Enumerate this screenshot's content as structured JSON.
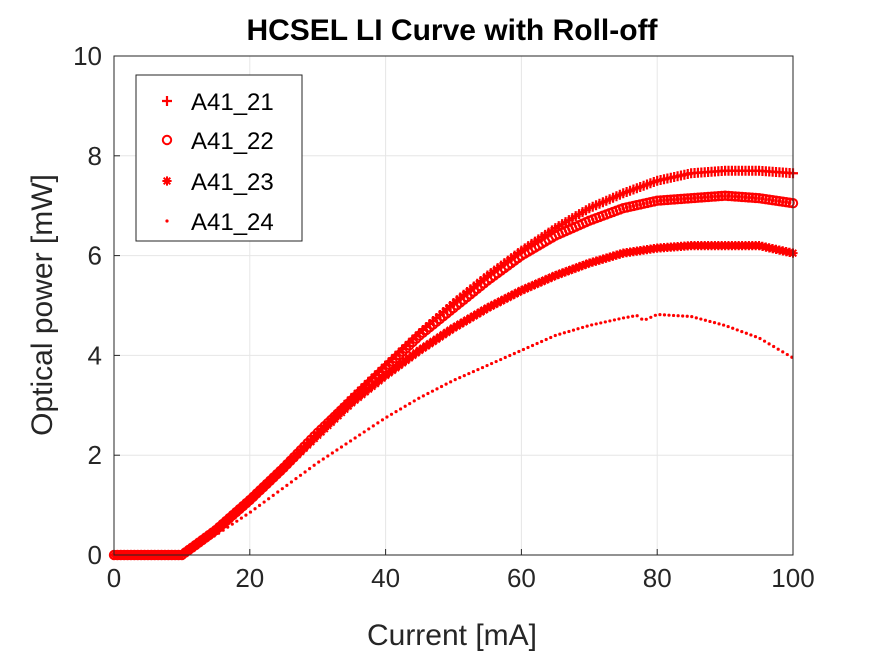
{
  "chart_data": {
    "type": "scatter",
    "title": "HCSEL LI Curve with Roll-off",
    "xlabel": "Current [mA]",
    "ylabel": "Optical power [mW]",
    "xlim": [
      0,
      100
    ],
    "ylim": [
      0,
      10
    ],
    "xticks": [
      "0",
      "20",
      "40",
      "60",
      "80",
      "100"
    ],
    "yticks": [
      "0",
      "2",
      "4",
      "6",
      "8",
      "10"
    ],
    "grid": true,
    "legend_position": "top-left",
    "colors": {
      "series": "#ff0000",
      "axis": "#262626",
      "grid": "#e6e6e6"
    },
    "series": [
      {
        "name": "A41_21",
        "marker": "plus",
        "x": [
          0,
          5,
          9.5,
          10,
          15,
          20,
          25,
          30,
          35,
          40,
          45,
          50,
          55,
          60,
          65,
          70,
          75,
          80,
          85,
          90,
          95,
          100
        ],
        "y": [
          0,
          0,
          0,
          0,
          0.5,
          1.1,
          1.75,
          2.45,
          3.15,
          3.8,
          4.45,
          5.05,
          5.6,
          6.1,
          6.55,
          6.95,
          7.25,
          7.5,
          7.65,
          7.7,
          7.7,
          7.65
        ]
      },
      {
        "name": "A41_22",
        "marker": "circle",
        "x": [
          0,
          5,
          9.5,
          10,
          15,
          20,
          25,
          30,
          35,
          40,
          45,
          50,
          55,
          60,
          65,
          70,
          75,
          80,
          85,
          90,
          95,
          100
        ],
        "y": [
          0,
          0,
          0,
          0,
          0.5,
          1.1,
          1.75,
          2.45,
          3.1,
          3.75,
          4.4,
          4.95,
          5.5,
          6.0,
          6.4,
          6.7,
          6.95,
          7.1,
          7.15,
          7.2,
          7.15,
          7.05
        ]
      },
      {
        "name": "A41_23",
        "marker": "star",
        "x": [
          0,
          5,
          9.5,
          10,
          15,
          20,
          25,
          30,
          35,
          40,
          45,
          50,
          55,
          60,
          65,
          70,
          75,
          80,
          85,
          90,
          95,
          100
        ],
        "y": [
          0,
          0,
          0,
          0,
          0.5,
          1.1,
          1.75,
          2.4,
          3.05,
          3.6,
          4.1,
          4.55,
          4.95,
          5.3,
          5.6,
          5.85,
          6.05,
          6.15,
          6.2,
          6.2,
          6.2,
          6.05
        ]
      },
      {
        "name": "A41_24",
        "marker": "dot",
        "x": [
          0,
          5,
          9.5,
          10,
          15,
          20,
          25,
          30,
          35,
          40,
          45,
          50,
          55,
          60,
          65,
          70,
          75,
          77,
          78,
          80,
          85,
          90,
          95,
          100
        ],
        "y": [
          0,
          0,
          0,
          0,
          0.4,
          0.85,
          1.35,
          1.85,
          2.3,
          2.75,
          3.15,
          3.5,
          3.8,
          4.1,
          4.4,
          4.6,
          4.75,
          4.8,
          4.7,
          4.82,
          4.78,
          4.6,
          4.35,
          3.95
        ]
      }
    ]
  }
}
